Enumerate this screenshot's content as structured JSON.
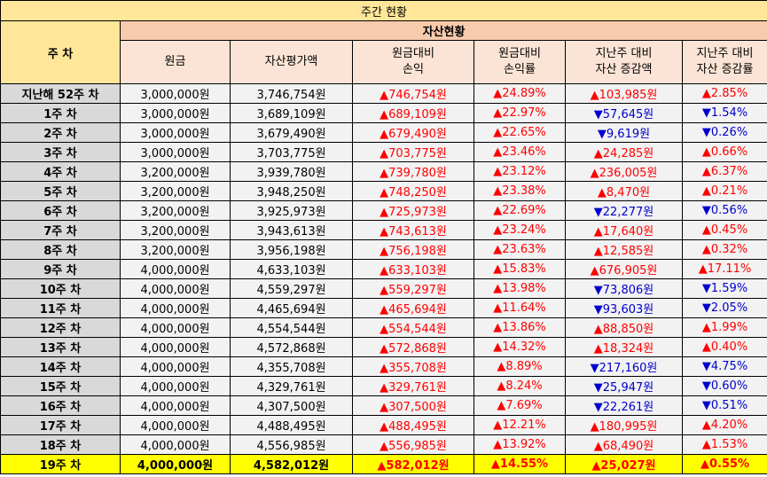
{
  "title": "주간 현황",
  "header": {
    "week_col": "주 차",
    "group": "자산현황",
    "columns": [
      {
        "line1": "원금",
        "line2": ""
      },
      {
        "line1": "자산평가액",
        "line2": ""
      },
      {
        "line1": "원금대비",
        "line2": "손익"
      },
      {
        "line1": "원금대비",
        "line2": "손익률"
      },
      {
        "line1": "지난주 대비",
        "line2": "자산 증감액"
      },
      {
        "line1": "지난주 대비",
        "line2": "자산 증감률"
      }
    ]
  },
  "rows": [
    {
      "week": "지난해 52주 차",
      "principal": "3,000,000원",
      "value": "3,746,754원",
      "pl": "▲746,754원",
      "pl_rate": "▲24.89%",
      "chg": "▲103,985원",
      "chg_rate": "▲2.85%",
      "chg_dir": "up"
    },
    {
      "week": "1주 차",
      "principal": "3,000,000원",
      "value": "3,689,109원",
      "pl": "▲689,109원",
      "pl_rate": "▲22.97%",
      "chg": "▼57,645원",
      "chg_rate": "▼1.54%",
      "chg_dir": "down"
    },
    {
      "week": "2주 차",
      "principal": "3,000,000원",
      "value": "3,679,490원",
      "pl": "▲679,490원",
      "pl_rate": "▲22.65%",
      "chg": "▼9,619원",
      "chg_rate": "▼0.26%",
      "chg_dir": "down"
    },
    {
      "week": "3주 차",
      "principal": "3,000,000원",
      "value": "3,703,775원",
      "pl": "▲703,775원",
      "pl_rate": "▲23.46%",
      "chg": "▲24,285원",
      "chg_rate": "▲0.66%",
      "chg_dir": "up"
    },
    {
      "week": "4주 차",
      "principal": "3,200,000원",
      "value": "3,939,780원",
      "pl": "▲739,780원",
      "pl_rate": "▲23.12%",
      "chg": "▲236,005원",
      "chg_rate": "▲6.37%",
      "chg_dir": "up"
    },
    {
      "week": "5주 차",
      "principal": "3,200,000원",
      "value": "3,948,250원",
      "pl": "▲748,250원",
      "pl_rate": "▲23.38%",
      "chg": "▲8,470원",
      "chg_rate": "▲0.21%",
      "chg_dir": "up"
    },
    {
      "week": "6주 차",
      "principal": "3,200,000원",
      "value": "3,925,973원",
      "pl": "▲725,973원",
      "pl_rate": "▲22.69%",
      "chg": "▼22,277원",
      "chg_rate": "▼0.56%",
      "chg_dir": "down"
    },
    {
      "week": "7주 차",
      "principal": "3,200,000원",
      "value": "3,943,613원",
      "pl": "▲743,613원",
      "pl_rate": "▲23.24%",
      "chg": "▲17,640원",
      "chg_rate": "▲0.45%",
      "chg_dir": "up"
    },
    {
      "week": "8주 차",
      "principal": "3,200,000원",
      "value": "3,956,198원",
      "pl": "▲756,198원",
      "pl_rate": "▲23.63%",
      "chg": "▲12,585원",
      "chg_rate": "▲0.32%",
      "chg_dir": "up"
    },
    {
      "week": "9주 차",
      "principal": "4,000,000원",
      "value": "4,633,103원",
      "pl": "▲633,103원",
      "pl_rate": "▲15.83%",
      "chg": "▲676,905원",
      "chg_rate": "▲17.11%",
      "chg_dir": "up"
    },
    {
      "week": "10주 차",
      "principal": "4,000,000원",
      "value": "4,559,297원",
      "pl": "▲559,297원",
      "pl_rate": "▲13.98%",
      "chg": "▼73,806원",
      "chg_rate": "▼1.59%",
      "chg_dir": "down"
    },
    {
      "week": "11주 차",
      "principal": "4,000,000원",
      "value": "4,465,694원",
      "pl": "▲465,694원",
      "pl_rate": "▲11.64%",
      "chg": "▼93,603원",
      "chg_rate": "▼2.05%",
      "chg_dir": "down"
    },
    {
      "week": "12주 차",
      "principal": "4,000,000원",
      "value": "4,554,544원",
      "pl": "▲554,544원",
      "pl_rate": "▲13.86%",
      "chg": "▲88,850원",
      "chg_rate": "▲1.99%",
      "chg_dir": "up"
    },
    {
      "week": "13주 차",
      "principal": "4,000,000원",
      "value": "4,572,868원",
      "pl": "▲572,868원",
      "pl_rate": "▲14.32%",
      "chg": "▲18,324원",
      "chg_rate": "▲0.40%",
      "chg_dir": "up"
    },
    {
      "week": "14주 차",
      "principal": "4,000,000원",
      "value": "4,355,708원",
      "pl": "▲355,708원",
      "pl_rate": "▲8.89%",
      "chg": "▼217,160원",
      "chg_rate": "▼4.75%",
      "chg_dir": "down"
    },
    {
      "week": "15주 차",
      "principal": "4,000,000원",
      "value": "4,329,761원",
      "pl": "▲329,761원",
      "pl_rate": "▲8.24%",
      "chg": "▼25,947원",
      "chg_rate": "▼0.60%",
      "chg_dir": "down"
    },
    {
      "week": "16주 차",
      "principal": "4,000,000원",
      "value": "4,307,500원",
      "pl": "▲307,500원",
      "pl_rate": "▲7.69%",
      "chg": "▼22,261원",
      "chg_rate": "▼0.51%",
      "chg_dir": "down"
    },
    {
      "week": "17주 차",
      "principal": "4,000,000원",
      "value": "4,488,495원",
      "pl": "▲488,495원",
      "pl_rate": "▲12.21%",
      "chg": "▲180,995원",
      "chg_rate": "▲4.20%",
      "chg_dir": "up"
    },
    {
      "week": "18주 차",
      "principal": "4,000,000원",
      "value": "4,556,985원",
      "pl": "▲556,985원",
      "pl_rate": "▲13.92%",
      "chg": "▲68,490원",
      "chg_rate": "▲1.53%",
      "chg_dir": "up"
    },
    {
      "week": "19주 차",
      "principal": "4,000,000원",
      "value": "4,582,012원",
      "pl": "▲582,012원",
      "pl_rate": "▲14.55%",
      "chg": "▲25,027원",
      "chg_rate": "▲0.55%",
      "chg_dir": "up",
      "highlight": true
    }
  ],
  "colors": {
    "up": "#FF0000",
    "down": "#0000CC",
    "highlight": "#FFFF00",
    "title_bg": "#FFE699",
    "group_bg": "#F8CBAD",
    "column_bg": "#FBE4D5"
  }
}
